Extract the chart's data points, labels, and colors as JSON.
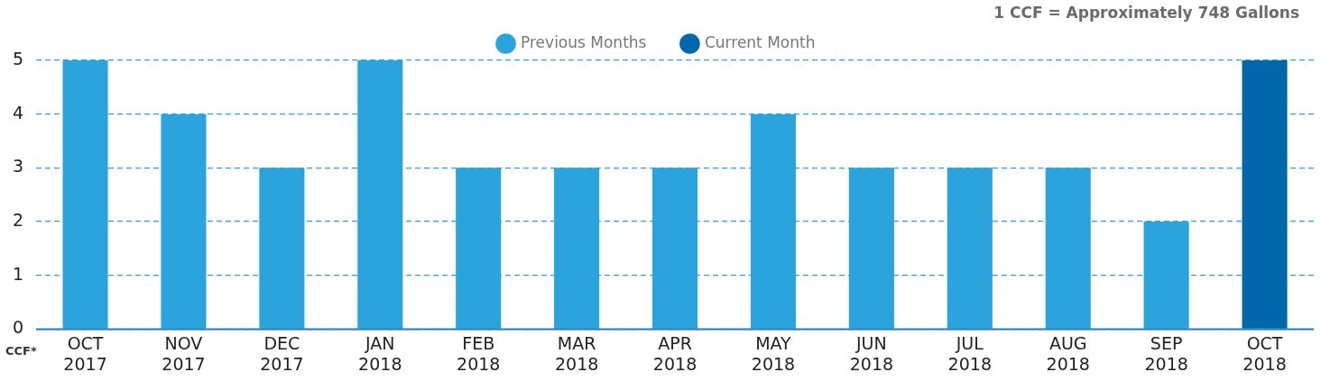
{
  "chart_data": {
    "type": "bar",
    "categories": [
      "OCT 2017",
      "NOV 2017",
      "DEC 2017",
      "JAN 2018",
      "FEB 2018",
      "MAR 2018",
      "APR 2018",
      "MAY 2018",
      "JUN 2018",
      "JUL 2018",
      "AUG 2018",
      "SEP 2018",
      "OCT 2018"
    ],
    "series": [
      {
        "name": "Previous Months",
        "color": "#2ba3dd",
        "values": [
          5,
          4,
          3,
          5,
          3,
          3,
          3,
          4,
          3,
          3,
          3,
          2,
          null
        ]
      },
      {
        "name": "Current Month",
        "color": "#0068aa",
        "values": [
          null,
          null,
          null,
          null,
          null,
          null,
          null,
          null,
          null,
          null,
          null,
          null,
          5
        ]
      }
    ],
    "ylabel": "CCF*",
    "annotations": [
      "1 CCF = Approximately 748 Gallons"
    ],
    "ylim": [
      0,
      5
    ],
    "yticks": [
      0,
      1,
      2,
      3,
      4,
      5
    ],
    "grid": "y",
    "legend": "top",
    "marker": "circle"
  }
}
